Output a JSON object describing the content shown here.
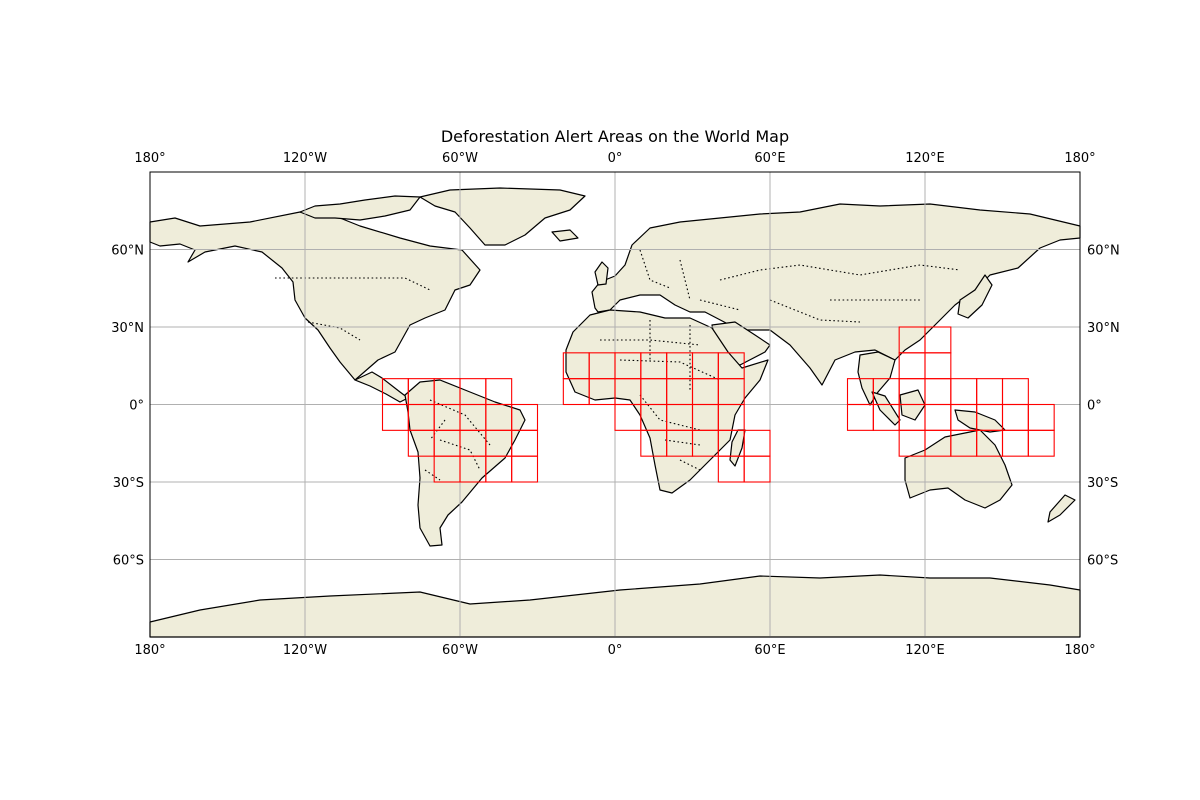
{
  "map": {
    "title": "Deforestation Alert Areas on the World Map",
    "projection": "PlateCarree",
    "extent": {
      "lon": [
        -180,
        180
      ],
      "lat": [
        -90,
        90
      ]
    },
    "colors": {
      "land": "#efedda",
      "ocean": "#ffffff",
      "coastline": "#000000",
      "borders": "#000000",
      "gridlines": "#b0b0b0",
      "alert_box": "#ff0000"
    },
    "gridlines": {
      "lon": [
        -180,
        -120,
        -60,
        0,
        60,
        120,
        180
      ],
      "lat": [
        60,
        30,
        0,
        -30,
        -60
      ],
      "lon_labels": [
        "180°",
        "120°W",
        "60°W",
        "0°",
        "60°E",
        "120°E",
        "180°"
      ],
      "lat_labels": [
        "60°N",
        "30°N",
        "0°",
        "30°S",
        "60°S"
      ]
    },
    "alert_cell_size_deg": 10,
    "alert_areas": [
      {
        "region": "South America",
        "cells": [
          [
            -90,
            0
          ],
          [
            -80,
            0
          ],
          [
            -70,
            0
          ],
          [
            -60,
            0
          ],
          [
            -50,
            0
          ],
          [
            -90,
            -10
          ],
          [
            -80,
            -10
          ],
          [
            -70,
            -10
          ],
          [
            -60,
            -10
          ],
          [
            -50,
            -10
          ],
          [
            -40,
            -10
          ],
          [
            -80,
            -20
          ],
          [
            -70,
            -20
          ],
          [
            -60,
            -20
          ],
          [
            -50,
            -20
          ],
          [
            -40,
            -20
          ],
          [
            -70,
            -30
          ],
          [
            -60,
            -30
          ],
          [
            -50,
            -30
          ],
          [
            -40,
            -30
          ]
        ]
      },
      {
        "region": "Africa",
        "cells": [
          [
            -20,
            10
          ],
          [
            -10,
            10
          ],
          [
            0,
            10
          ],
          [
            10,
            10
          ],
          [
            20,
            10
          ],
          [
            30,
            10
          ],
          [
            40,
            10
          ],
          [
            -20,
            0
          ],
          [
            -10,
            0
          ],
          [
            0,
            0
          ],
          [
            10,
            0
          ],
          [
            20,
            0
          ],
          [
            30,
            0
          ],
          [
            40,
            0
          ],
          [
            0,
            -10
          ],
          [
            10,
            -10
          ],
          [
            20,
            -10
          ],
          [
            30,
            -10
          ],
          [
            40,
            -10
          ],
          [
            10,
            -20
          ],
          [
            20,
            -20
          ],
          [
            30,
            -20
          ],
          [
            40,
            -20
          ],
          [
            50,
            -20
          ],
          [
            40,
            -30
          ],
          [
            50,
            -30
          ]
        ]
      },
      {
        "region": "Southeast Asia and Oceania",
        "cells": [
          [
            110,
            20
          ],
          [
            120,
            20
          ],
          [
            110,
            10
          ],
          [
            120,
            10
          ],
          [
            90,
            0
          ],
          [
            100,
            0
          ],
          [
            110,
            0
          ],
          [
            120,
            0
          ],
          [
            130,
            0
          ],
          [
            140,
            0
          ],
          [
            150,
            0
          ],
          [
            90,
            -10
          ],
          [
            100,
            -10
          ],
          [
            110,
            -10
          ],
          [
            120,
            -10
          ],
          [
            130,
            -10
          ],
          [
            140,
            -10
          ],
          [
            150,
            -10
          ],
          [
            160,
            -10
          ],
          [
            110,
            -20
          ],
          [
            120,
            -20
          ],
          [
            130,
            -20
          ],
          [
            140,
            -20
          ],
          [
            150,
            -20
          ],
          [
            160,
            -20
          ]
        ]
      }
    ]
  }
}
